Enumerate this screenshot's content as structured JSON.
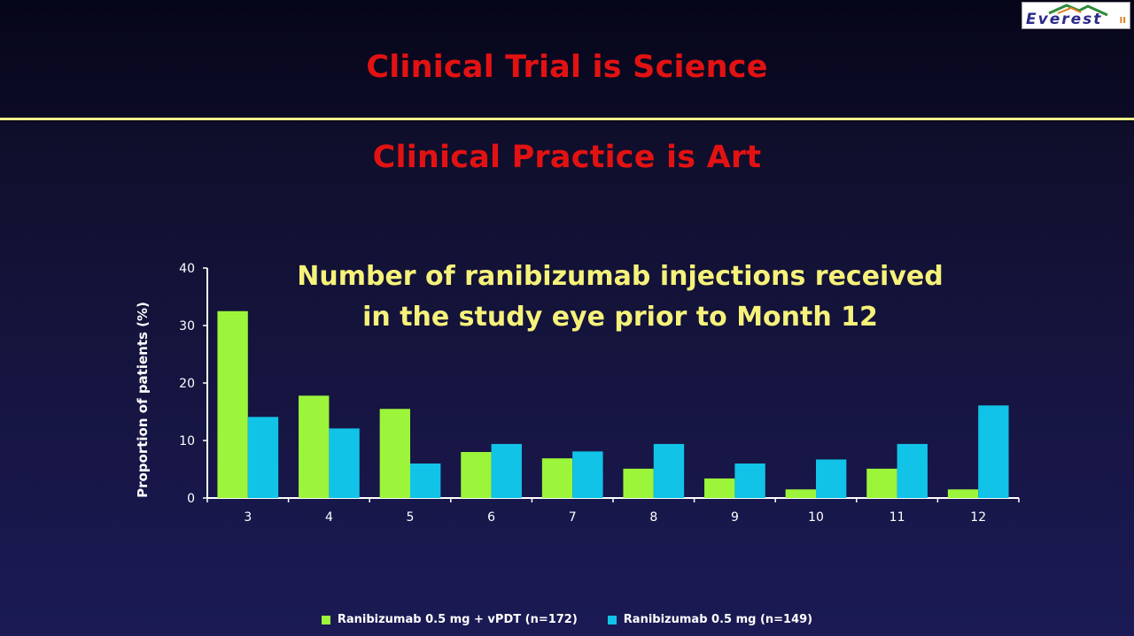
{
  "slide": {
    "title1": "Clinical Trial is Science",
    "title2": "Clinical Practice is Art",
    "logo_text": "Everest",
    "logo_sup": "II"
  },
  "colors": {
    "series1": "#9cf53a",
    "series2": "#12c3e8",
    "title": "#e31212",
    "chart_title": "#f6f27a",
    "divider": "#f4f08a"
  },
  "chart_data": {
    "type": "bar",
    "title_lines": [
      "Number of ranibizumab injections received",
      "in the study eye prior to Month 12"
    ],
    "categories": [
      "3",
      "4",
      "5",
      "6",
      "7",
      "8",
      "9",
      "10",
      "11",
      "12"
    ],
    "series": [
      {
        "name": "Ranibizumab 0.5 mg + vPDT (n=172)",
        "values": [
          32.5,
          17.8,
          15.5,
          8.0,
          6.9,
          5.1,
          3.4,
          1.5,
          5.1,
          1.5
        ]
      },
      {
        "name": "Ranibizumab 0.5 mg (n=149)",
        "values": [
          14.1,
          12.1,
          6.0,
          9.4,
          8.1,
          9.4,
          6.0,
          6.7,
          9.4,
          16.1
        ]
      }
    ],
    "xlabel": "",
    "ylabel": "Proportion of patients (%)",
    "ylim": [
      0,
      40
    ],
    "yticks": [
      "0",
      "10",
      "20",
      "30",
      "40"
    ],
    "grid": false,
    "legend": "bottom"
  }
}
